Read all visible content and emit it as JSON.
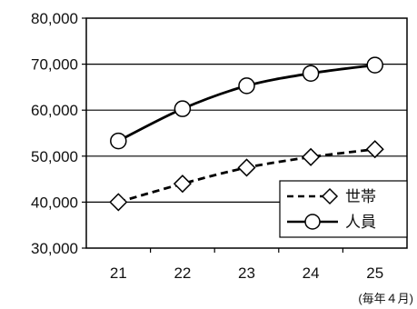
{
  "chart_data": {
    "type": "line",
    "categories": [
      "21",
      "22",
      "23",
      "24",
      "25"
    ],
    "x_note": "(毎年４月)",
    "ylim": [
      30000,
      80000
    ],
    "y_ticks": [
      "30,000",
      "40,000",
      "50,000",
      "60,000",
      "70,000",
      "80,000"
    ],
    "grid": true,
    "legend_position": "bottom-right",
    "series": [
      {
        "name": "世帯",
        "marker": "diamond",
        "line_style": "dashed",
        "values": [
          40000,
          44000,
          47500,
          49800,
          51500
        ]
      },
      {
        "name": "人員",
        "marker": "circle",
        "line_style": "solid",
        "values": [
          53300,
          60300,
          65300,
          68000,
          69800
        ]
      }
    ]
  }
}
